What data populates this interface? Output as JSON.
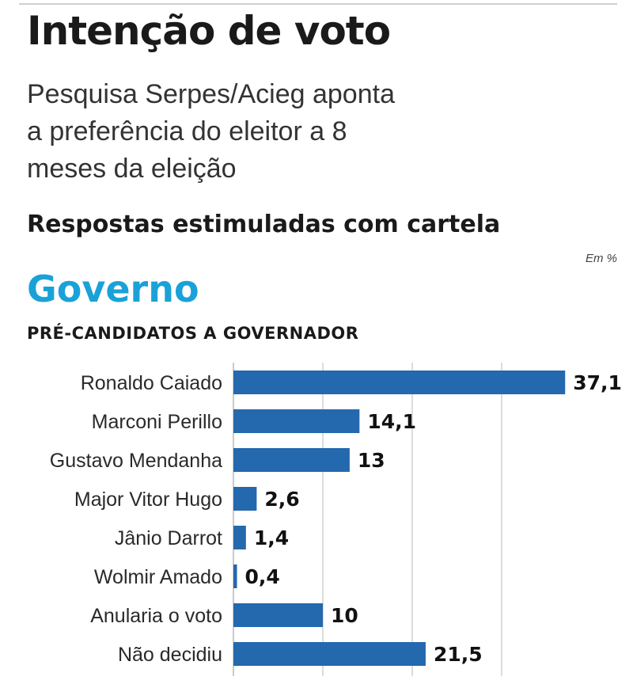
{
  "header": {
    "title": "Intenção de voto",
    "subtitle": "Pesquisa Serpes/Acieg aponta\na preferência do eleitor a 8\nmeses da eleição",
    "section": "Respostas estimuladas com cartela",
    "unit": "Em %",
    "heading": "Governo",
    "subheading": "PRÉ-CANDIDATOS A GOVERNADOR"
  },
  "colors": {
    "bar": "#2468ae",
    "heading": "#1aa2d8",
    "grid": "#b9b9b9"
  },
  "chart_data": {
    "type": "bar",
    "orientation": "horizontal",
    "title": "PRÉ-CANDIDATOS A GOVERNADOR",
    "categories": [
      "Ronaldo Caiado",
      "Marconi Perillo",
      "Gustavo Mendanha",
      "Major Vitor Hugo",
      "Jânio Darrot",
      "Wolmir Amado",
      "Anularia o voto",
      "Não decidiu"
    ],
    "values": [
      37.1,
      14.1,
      13,
      2.6,
      1.4,
      0.4,
      10,
      21.5
    ],
    "value_labels": [
      "37,1",
      "14,1",
      "13",
      "2,6",
      "1,4",
      "0,4",
      "10",
      "21,5"
    ],
    "unit": "Em %",
    "xlim": [
      0,
      40
    ],
    "gridlines": [
      0,
      10,
      20,
      30
    ],
    "grid": true,
    "legend": "none"
  }
}
